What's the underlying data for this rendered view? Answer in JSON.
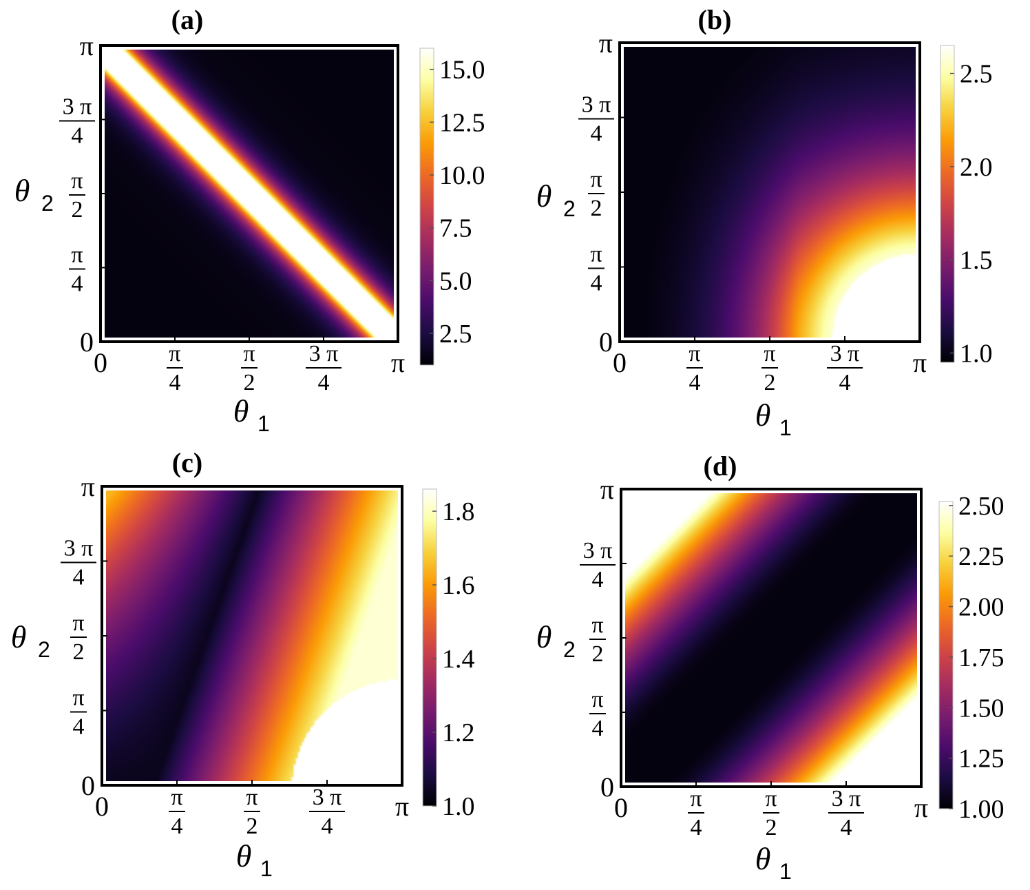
{
  "chart_data": [
    {
      "type": "heatmap",
      "panel": "(a)",
      "title": "(a)",
      "xlabel": "θ",
      "xlabel_sub": "1",
      "ylabel": "θ",
      "ylabel_sub": "2",
      "xlim": [
        0,
        3.14159
      ],
      "ylim": [
        0,
        3.14159
      ],
      "x_ticks": [
        {
          "value": 0,
          "label": "0"
        },
        {
          "value": 0.7854,
          "num": "π",
          "den": "4"
        },
        {
          "value": 1.5708,
          "num": "π",
          "den": "2"
        },
        {
          "value": 2.3562,
          "num": "3 π",
          "den": "4"
        },
        {
          "value": 3.14159,
          "label": "π"
        }
      ],
      "y_ticks": [
        {
          "value": 0,
          "label": "0"
        },
        {
          "value": 0.7854,
          "num": "π",
          "den": "4"
        },
        {
          "value": 1.5708,
          "num": "π",
          "den": "2"
        },
        {
          "value": 2.3562,
          "num": "3 π",
          "den": "4"
        },
        {
          "value": 3.14159,
          "label": "π"
        }
      ],
      "colorbar": {
        "range": [
          1.0,
          16.0
        ],
        "ticks": [
          "2.5",
          "5.0",
          "7.5",
          "10.0",
          "12.5",
          "15.0"
        ],
        "tick_values": [
          2.5,
          5.0,
          7.5,
          10.0,
          12.5,
          15.0
        ]
      },
      "description_of_pattern": "bright band along θ1 + θ2 = π, decaying to dark away from it",
      "grid": false
    },
    {
      "type": "heatmap",
      "panel": "(b)",
      "title": "(b)",
      "xlabel": "θ",
      "xlabel_sub": "1",
      "ylabel": "θ",
      "ylabel_sub": "2",
      "xlim": [
        0,
        3.14159
      ],
      "ylim": [
        0,
        3.14159
      ],
      "x_ticks": [
        {
          "value": 0,
          "label": "0"
        },
        {
          "value": 0.7854,
          "num": "π",
          "den": "4"
        },
        {
          "value": 1.5708,
          "num": "π",
          "den": "2"
        },
        {
          "value": 2.3562,
          "num": "3 π",
          "den": "4"
        },
        {
          "value": 3.14159,
          "label": "π"
        }
      ],
      "y_ticks": [
        {
          "value": 0,
          "label": "0"
        },
        {
          "value": 0.7854,
          "num": "π",
          "den": "4"
        },
        {
          "value": 1.5708,
          "num": "π",
          "den": "2"
        },
        {
          "value": 2.3562,
          "num": "3 π",
          "den": "4"
        },
        {
          "value": 3.14159,
          "label": "π"
        }
      ],
      "colorbar": {
        "range": [
          0.95,
          2.65
        ],
        "ticks": [
          "1.0",
          "1.5",
          "2.0",
          "2.5"
        ],
        "tick_values": [
          1.0,
          1.5,
          2.0,
          2.5
        ]
      },
      "grid": false
    },
    {
      "type": "heatmap",
      "panel": "(c)",
      "title": "(c)",
      "xlabel": "θ",
      "xlabel_sub": "1",
      "ylabel": "θ",
      "ylabel_sub": "2",
      "xlim": [
        0,
        3.14159
      ],
      "ylim": [
        0,
        3.14159
      ],
      "x_ticks": [
        {
          "value": 0,
          "label": "0"
        },
        {
          "value": 0.7854,
          "num": "π",
          "den": "4"
        },
        {
          "value": 1.5708,
          "num": "π",
          "den": "2"
        },
        {
          "value": 2.3562,
          "num": "3 π",
          "den": "4"
        },
        {
          "value": 3.14159,
          "label": "π"
        }
      ],
      "y_ticks": [
        {
          "value": 0,
          "label": "0"
        },
        {
          "value": 0.7854,
          "num": "π",
          "den": "4"
        },
        {
          "value": 1.5708,
          "num": "π",
          "den": "2"
        },
        {
          "value": 2.3562,
          "num": "3 π",
          "den": "4"
        },
        {
          "value": 3.14159,
          "label": "π"
        }
      ],
      "colorbar": {
        "range": [
          1.0,
          1.86
        ],
        "ticks": [
          "1.0",
          "1.2",
          "1.4",
          "1.6",
          "1.8"
        ],
        "tick_values": [
          1.0,
          1.2,
          1.4,
          1.6,
          1.8
        ]
      },
      "grid": false
    },
    {
      "type": "heatmap",
      "panel": "(d)",
      "title": "(d)",
      "xlabel": "θ",
      "xlabel_sub": "1",
      "ylabel": "θ",
      "ylabel_sub": "2",
      "xlim": [
        0,
        3.14159
      ],
      "ylim": [
        0,
        3.14159
      ],
      "x_ticks": [
        {
          "value": 0,
          "label": "0"
        },
        {
          "value": 0.7854,
          "num": "π",
          "den": "4"
        },
        {
          "value": 1.5708,
          "num": "π",
          "den": "2"
        },
        {
          "value": 2.3562,
          "num": "3 π",
          "den": "4"
        },
        {
          "value": 3.14159,
          "label": "π"
        }
      ],
      "y_ticks": [
        {
          "value": 0,
          "label": "0"
        },
        {
          "value": 0.7854,
          "num": "π",
          "den": "4"
        },
        {
          "value": 1.5708,
          "num": "π",
          "den": "2"
        },
        {
          "value": 2.3562,
          "num": "3 π",
          "den": "4"
        },
        {
          "value": 3.14159,
          "label": "π"
        }
      ],
      "colorbar": {
        "range": [
          1.0,
          2.52
        ],
        "ticks": [
          "1.00",
          "1.25",
          "1.50",
          "1.75",
          "2.00",
          "2.25",
          "2.50"
        ],
        "tick_values": [
          1.0,
          1.25,
          1.5,
          1.75,
          2.0,
          2.25,
          2.5
        ]
      },
      "grid": false
    }
  ],
  "colormap": {
    "name": "inferno-like",
    "stops": [
      "#000004",
      "#1b0c41",
      "#4a0c6b",
      "#781c6d",
      "#a52c60",
      "#cf4446",
      "#ed6925",
      "#fb9b06",
      "#f7d13d",
      "#fcffa4",
      "#ffffff"
    ]
  },
  "frame_color": "#000000"
}
